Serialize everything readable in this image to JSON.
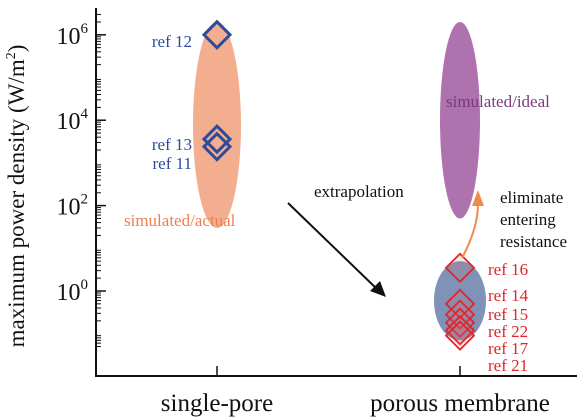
{
  "chart_data": {
    "type": "scatter",
    "ylabel_main": "maximum power density (W/m",
    "ylabel_sup": "2",
    "ylabel_close": ")",
    "yscale": "log",
    "ylim": [
      0.05,
      3000000
    ],
    "yticks": [
      {
        "value": 1,
        "base": "10",
        "exp": "0"
      },
      {
        "value": 100,
        "base": "10",
        "exp": "2"
      },
      {
        "value": 10000,
        "base": "10",
        "exp": "4"
      },
      {
        "value": 1000000,
        "base": "10",
        "exp": "6"
      }
    ],
    "categories": [
      "single-pore",
      "porous membrane"
    ],
    "ranges": [
      {
        "category": "single-pore",
        "label": "simulated/actual",
        "low": 30,
        "high": 2000000,
        "color": "#f0a07a"
      },
      {
        "category": "porous membrane",
        "label": "simulated/ideal",
        "low": 50,
        "high": 2000000,
        "color": "#a05aa0"
      },
      {
        "category": "porous membrane",
        "label": "",
        "low": 0.07,
        "high": 5,
        "color": "#6a7faa"
      }
    ],
    "series": [
      {
        "category": "single-pore",
        "color": "#2f4a9a",
        "points": [
          {
            "label": "ref 12",
            "value": 1000000
          },
          {
            "label": "ref 13",
            "value": 3600
          },
          {
            "label": "ref 11",
            "value": 2400
          }
        ]
      },
      {
        "category": "porous membrane",
        "color": "#e0242a",
        "points": [
          {
            "label": "ref 16",
            "value": 3.5
          },
          {
            "label": "ref 14",
            "value": 0.5
          },
          {
            "label": "ref 15",
            "value": 0.28
          },
          {
            "label": "ref 22",
            "value": 0.18
          },
          {
            "label": "ref 17",
            "value": 0.12
          },
          {
            "label": "ref 21",
            "value": 0.09
          }
        ]
      }
    ],
    "annotations": [
      {
        "text": "extrapolation"
      },
      {
        "lines": [
          "eliminate",
          "entering",
          "resistance"
        ]
      }
    ]
  }
}
